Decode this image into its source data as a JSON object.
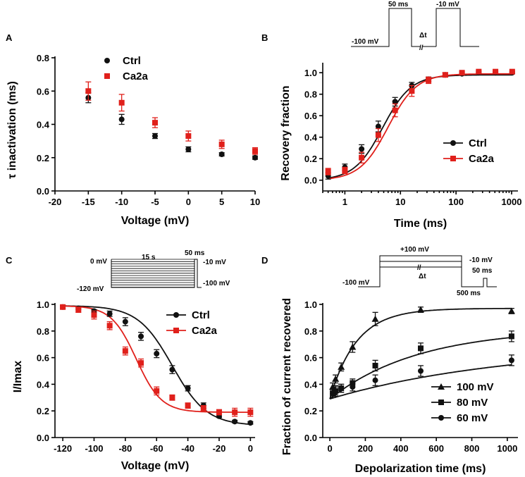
{
  "colors": {
    "ctrl": "#111111",
    "ca2a": "#e0201b",
    "black": "#111111"
  },
  "chart_data": [
    {
      "panel": "A",
      "type": "scatter",
      "xlabel": "Voltage (mV)",
      "ylabel": "τ inactivation (ms)",
      "xlim": [
        -20,
        10
      ],
      "ylim": [
        0,
        0.8
      ],
      "xticks": [
        -20,
        -15,
        -10,
        -5,
        0,
        5,
        10
      ],
      "yticks": [
        0.0,
        0.2,
        0.4,
        0.6,
        0.8
      ],
      "xscale": "linear",
      "legend_position": "top-left",
      "series": [
        {
          "name": "Ctrl",
          "marker": "circle",
          "color": "#111111",
          "x": [
            -15,
            -10,
            -5,
            0,
            5,
            10
          ],
          "y": [
            0.56,
            0.43,
            0.33,
            0.25,
            0.22,
            0.2
          ],
          "err": [
            0.03,
            0.03,
            0.015,
            0.015,
            0.01,
            0.01
          ]
        },
        {
          "name": "Ca2a",
          "marker": "square",
          "color": "#e0201b",
          "x": [
            -15,
            -10,
            -5,
            0,
            5,
            10
          ],
          "y": [
            0.6,
            0.53,
            0.41,
            0.33,
            0.28,
            0.24
          ],
          "err": [
            0.055,
            0.05,
            0.03,
            0.03,
            0.025,
            0.02
          ]
        }
      ]
    },
    {
      "panel": "B",
      "type": "scatter",
      "xlabel": "Time (ms)",
      "ylabel": "Recovery fraction",
      "xscale": "log",
      "xlim": [
        0.4,
        1300
      ],
      "ylim": [
        -0.1,
        1.08
      ],
      "xticks": [
        1,
        10,
        100,
        1000
      ],
      "yticks": [
        0.0,
        0.2,
        0.4,
        0.6,
        0.8,
        1.0
      ],
      "legend_position": "right",
      "series": [
        {
          "name": "Ctrl",
          "marker": "circle",
          "color": "#111111",
          "x": [
            0.5,
            1,
            2,
            4,
            8,
            16,
            32,
            64,
            128,
            256,
            512,
            1024
          ],
          "y": [
            0.04,
            0.12,
            0.29,
            0.5,
            0.73,
            0.88,
            0.94,
            0.98,
            0.99,
            1.0,
            1.0,
            1.0
          ],
          "err": [
            0.03,
            0.03,
            0.04,
            0.05,
            0.04,
            0.03,
            0.02,
            0.02,
            0.01,
            0.01,
            0.01,
            0.01
          ],
          "fit_tau_ms": 4.8,
          "fit_slope": 1.7,
          "fit_plateau": 0.98
        },
        {
          "name": "Ca2a",
          "marker": "square",
          "color": "#e0201b",
          "x": [
            0.5,
            1,
            2,
            4,
            8,
            16,
            32,
            64,
            128,
            256,
            512,
            1024
          ],
          "y": [
            0.08,
            0.09,
            0.21,
            0.42,
            0.65,
            0.83,
            0.93,
            0.98,
            1.0,
            1.01,
            1.01,
            1.01
          ],
          "err": [
            0.03,
            0.03,
            0.05,
            0.06,
            0.06,
            0.05,
            0.03,
            0.02,
            0.01,
            0.01,
            0.01,
            0.01
          ],
          "fit_tau_ms": 6.0,
          "fit_slope": 1.7,
          "fit_plateau": 0.99
        }
      ]
    },
    {
      "panel": "C",
      "type": "line",
      "xlabel": "Voltage (mV)",
      "ylabel": "I/Imax",
      "xscale": "linear",
      "xlim": [
        -125,
        3
      ],
      "ylim": [
        0,
        1.0
      ],
      "xticks": [
        -120,
        -100,
        -80,
        -60,
        -40,
        -20,
        0
      ],
      "yticks": [
        0.0,
        0.2,
        0.4,
        0.6,
        0.8,
        1.0
      ],
      "legend_position": "top-right",
      "series": [
        {
          "name": "Ctrl",
          "marker": "circle",
          "color": "#111111",
          "x": [
            -120,
            -110,
            -100,
            -90,
            -80,
            -70,
            -60,
            -50,
            -40,
            -30,
            -20,
            -10,
            0
          ],
          "y": [
            0.98,
            0.97,
            0.95,
            0.93,
            0.87,
            0.76,
            0.63,
            0.51,
            0.37,
            0.24,
            0.16,
            0.12,
            0.11
          ],
          "err": [
            0.01,
            0.01,
            0.01,
            0.02,
            0.03,
            0.03,
            0.03,
            0.03,
            0.02,
            0.02,
            0.01,
            0.01,
            0.01
          ],
          "fit_v_half": -50,
          "fit_k": 11,
          "fit_bottom": 0.09,
          "fit_top": 0.99
        },
        {
          "name": "Ca2a",
          "marker": "square",
          "color": "#e0201b",
          "x": [
            -120,
            -110,
            -100,
            -90,
            -80,
            -70,
            -60,
            -50,
            -40,
            -30,
            -20,
            -10,
            0
          ],
          "y": [
            0.98,
            0.96,
            0.92,
            0.84,
            0.65,
            0.56,
            0.35,
            0.3,
            0.24,
            0.22,
            0.19,
            0.19,
            0.19
          ],
          "err": [
            0.01,
            0.02,
            0.03,
            0.03,
            0.03,
            0.03,
            0.03,
            0.02,
            0.02,
            0.02,
            0.02,
            0.03,
            0.03
          ],
          "fit_v_half": -73,
          "fit_k": 8,
          "fit_bottom": 0.19,
          "fit_top": 0.99
        }
      ]
    },
    {
      "panel": "D",
      "type": "scatter",
      "xlabel": "Depolarization time (ms)",
      "ylabel": "Fraction of current recovered",
      "xscale": "linear",
      "xlim": [
        -40,
        1060
      ],
      "ylim": [
        0,
        1.0
      ],
      "xticks": [
        0,
        200,
        400,
        600,
        800,
        1000
      ],
      "yticks": [
        0.0,
        0.2,
        0.4,
        0.6,
        0.8,
        1.0
      ],
      "legend_position": "bottom-left",
      "series": [
        {
          "name": "100 mV",
          "marker": "triangle",
          "color": "#111111",
          "x": [
            16,
            32,
            64,
            128,
            256,
            512,
            1024
          ],
          "y": [
            0.38,
            0.44,
            0.53,
            0.68,
            0.89,
            0.96,
            0.95
          ],
          "err": [
            0.03,
            0.03,
            0.03,
            0.04,
            0.05,
            0.02,
            0.02
          ],
          "fit_a": 0.68,
          "fit_b": 0.29,
          "fit_tau": 150
        },
        {
          "name": "80 mV",
          "marker": "square",
          "color": "#111111",
          "x": [
            16,
            32,
            64,
            128,
            256,
            512,
            1024
          ],
          "y": [
            0.33,
            0.35,
            0.37,
            0.41,
            0.54,
            0.67,
            0.76
          ],
          "err": [
            0.03,
            0.03,
            0.03,
            0.03,
            0.04,
            0.04,
            0.04
          ],
          "fit_a": 0.53,
          "fit_b": 0.29,
          "fit_tau": 500
        },
        {
          "name": "60 mV",
          "marker": "circle",
          "color": "#111111",
          "x": [
            16,
            32,
            64,
            128,
            256,
            512,
            1024
          ],
          "y": [
            0.33,
            0.35,
            0.37,
            0.38,
            0.43,
            0.5,
            0.58
          ],
          "err": [
            0.03,
            0.04,
            0.03,
            0.03,
            0.04,
            0.04,
            0.04
          ],
          "fit_a": 0.4,
          "fit_b": 0.29,
          "fit_tau": 1000
        }
      ]
    }
  ],
  "panel_labels": [
    "A",
    "B",
    "C",
    "D"
  ],
  "protocols": {
    "B": {
      "hold": "-100 mV",
      "step1": "50 ms",
      "step2": "-10 mV",
      "gap": "Δt"
    },
    "C": {
      "top": "0 mV",
      "bottom": "-120 mV",
      "duration": "15 s",
      "test_dur": "50 ms",
      "test_v": "-10 mV",
      "return_v": "-100 mV"
    },
    "D": {
      "pre": "+100 mV",
      "hold": "-100 mV",
      "gap": "Δt",
      "recover": "500 ms",
      "test_v": "-10 mV",
      "test_dur": "50 ms"
    }
  }
}
